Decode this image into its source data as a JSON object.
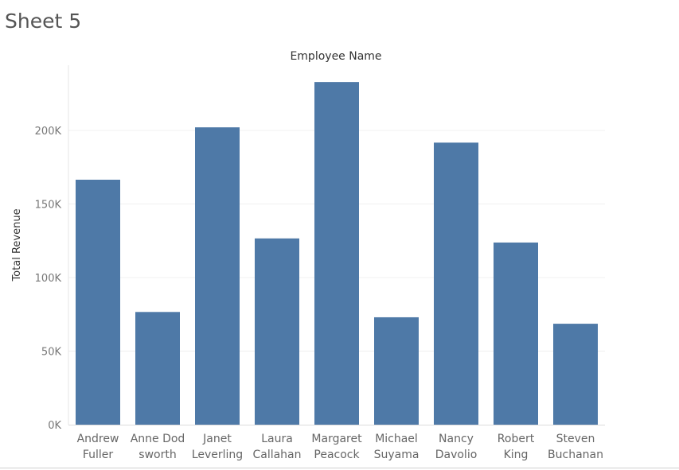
{
  "sheet": {
    "title": "Sheet 5"
  },
  "chart_data": {
    "type": "bar",
    "title": "Employee Name",
    "xlabel": "",
    "ylabel": "Total Revenue",
    "categories": [
      [
        "Andrew",
        "Fuller"
      ],
      [
        "Anne Dod",
        "sworth"
      ],
      [
        "Janet",
        "Leverling"
      ],
      [
        "Laura",
        "Callahan"
      ],
      [
        "Margaret",
        "Peacock"
      ],
      [
        "Michael",
        "Suyama"
      ],
      [
        "Nancy",
        "Davolio"
      ],
      [
        "Robert",
        "King"
      ],
      [
        "Steven",
        "Buchanan"
      ]
    ],
    "values": [
      166500,
      76600,
      202100,
      126600,
      232900,
      73000,
      191700,
      123800,
      68600
    ],
    "ylim": [
      0,
      244000
    ],
    "yticks": [
      0,
      50000,
      100000,
      150000,
      200000
    ],
    "ytick_labels": [
      "0K",
      "50K",
      "100K",
      "150K",
      "200K"
    ],
    "grid": true,
    "bar_color": "#4e79a7",
    "grid_color": "#f0f0f0"
  }
}
